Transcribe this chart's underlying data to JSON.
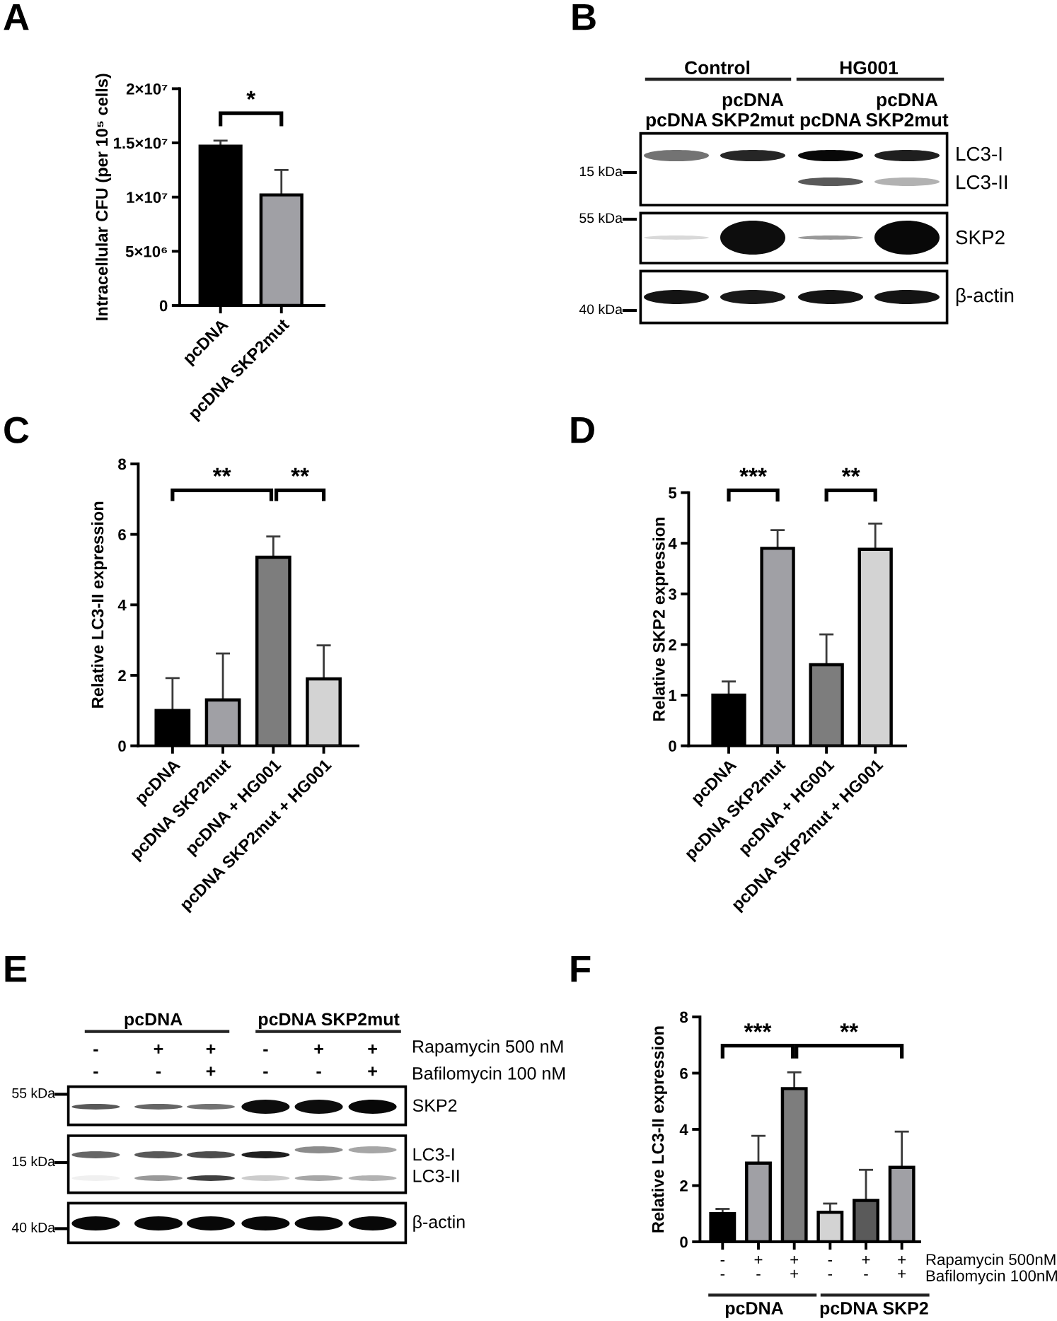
{
  "chart_data": [
    {
      "type": "bar",
      "title": "A",
      "ylabel": "Intracellular CFU (per 10⁵ cells)",
      "categories": [
        "pcDNA",
        "pcDNA SKP2mut"
      ],
      "values": [
        14700000,
        10200000
      ],
      "errors": [
        [
          14700000,
          15200000
        ],
        [
          10200000,
          12500000
        ]
      ],
      "colors": [
        "#000000",
        "#a0a0a5"
      ],
      "ylim": [
        0,
        20000000
      ],
      "yticks": [
        0,
        {
          "value": 5000000,
          "label": "5×10⁶"
        },
        {
          "value": 10000000,
          "label": "1×10⁷"
        },
        {
          "value": 15000000,
          "label": "1.5×10⁷"
        },
        {
          "value": 20000000,
          "label": "2×10⁷"
        }
      ],
      "annotations": [
        "*"
      ]
    },
    {
      "type": "other",
      "title": "B",
      "categories": [
        "pcDNA",
        "pcDNA\nSKP2mut",
        "pcDNA",
        "pcDNA\nSKP2mut"
      ],
      "annotations": [
        "Control",
        "HG001",
        "LC3-I",
        "LC3-II",
        "SKP2",
        "β-actin",
        "15 kDa",
        "55 kDa",
        "40 kDa"
      ]
    },
    {
      "type": "bar",
      "title": "C",
      "ylabel": "Relative LC3-II expression",
      "categories": [
        "pcDNA",
        "pcDNA SKP2mut",
        "pcDNA + HG001",
        "pcDNA SKP2mut + HG001"
      ],
      "values": [
        1.0,
        1.3,
        5.35,
        1.9
      ],
      "errors": [
        [
          1.0,
          1.92
        ],
        [
          1.3,
          2.62
        ],
        [
          5.35,
          5.94
        ],
        [
          1.9,
          2.85
        ]
      ],
      "colors": [
        "#000000",
        "#a0a0a5",
        "#7d7d7d",
        "#d3d3d3"
      ],
      "ylim": [
        0,
        8
      ],
      "yticks": [
        0,
        2,
        4,
        6,
        8
      ],
      "annotations": [
        "**",
        "**"
      ]
    },
    {
      "type": "bar",
      "title": "D",
      "ylabel": "Relative SKP2 expression",
      "categories": [
        "pcDNA",
        "pcDNA SKP2mut",
        "pcDNA + HG001",
        "pcDNA SKP2mut + HG001"
      ],
      "values": [
        1.0,
        3.9,
        1.6,
        3.88
      ],
      "errors": [
        [
          1.0,
          1.27
        ],
        [
          3.9,
          4.26
        ],
        [
          1.6,
          2.2
        ],
        [
          3.88,
          4.39
        ]
      ],
      "colors": [
        "#000000",
        "#a0a0a5",
        "#7d7d7d",
        "#d3d3d3"
      ],
      "ylim": [
        0,
        5
      ],
      "yticks": [
        0,
        1,
        2,
        3,
        4,
        5
      ],
      "annotations": [
        "***",
        "**"
      ]
    },
    {
      "type": "other",
      "title": "E",
      "categories": [
        "-\n-",
        "+\n-",
        "+\n+",
        "-\n-",
        "+\n-",
        "+\n+"
      ],
      "annotations": [
        "pcDNA",
        "pcDNA SKP2mut",
        "Rapamycin 500 nM",
        "Bafilomycin 100 nM",
        "SKP2",
        "LC3-I",
        "LC3-II",
        "β-actin",
        "55 kDa",
        "15 kDa",
        "40 kDa"
      ]
    },
    {
      "type": "bar",
      "title": "F",
      "ylabel": "Relative LC3-II expression",
      "categories": [
        "-\n-",
        "+\n-",
        "+\n+",
        "-\n-",
        "+\n-",
        "+\n+"
      ],
      "values": [
        1.0,
        2.8,
        5.45,
        1.05,
        1.47,
        2.65
      ],
      "errors": [
        [
          1.0,
          1.17
        ],
        [
          2.8,
          3.77
        ],
        [
          5.45,
          6.03
        ],
        [
          1.05,
          1.36
        ],
        [
          1.47,
          2.56
        ],
        [
          2.65,
          3.92
        ]
      ],
      "colors": [
        "#000000",
        "#a0a0a5",
        "#7d7d7d",
        "#d3d3d3",
        "#5a5a5a",
        "#a0a0a5"
      ],
      "ylim": [
        0,
        8
      ],
      "yticks": [
        0,
        2,
        4,
        6,
        8
      ],
      "annotations": [
        "***",
        "**",
        "Rapamycin 500nM",
        "Bafilomycin 100nM",
        "pcDNA",
        "pcDNA SKP2"
      ]
    }
  ]
}
